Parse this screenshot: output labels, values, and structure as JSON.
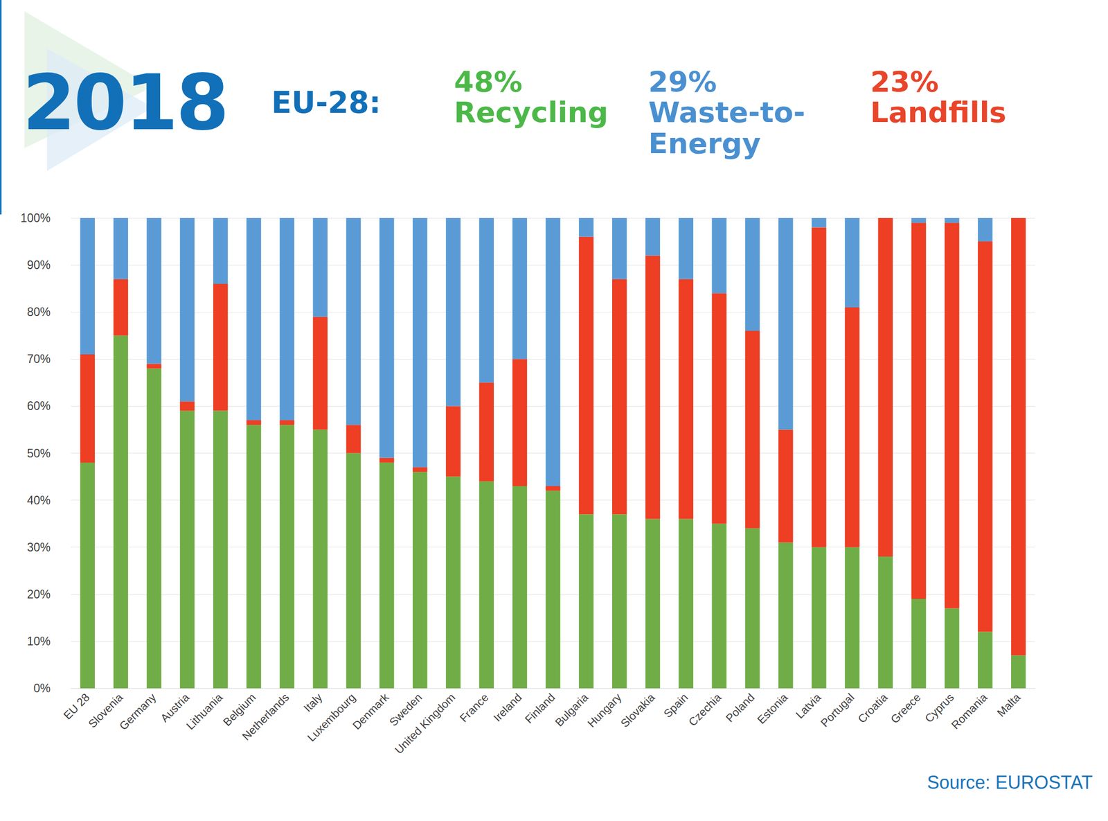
{
  "chart_data": {
    "type": "bar",
    "title": "2018",
    "subtitle": "EU-28:",
    "source": "Source: EUROSTAT",
    "stacked": true,
    "grid": true,
    "categories": [
      "EU 28",
      "Slovenia",
      "Germany",
      "Austria",
      "Lithuania",
      "Belgium",
      "Netherlands",
      "Italy",
      "Luxembourg",
      "Denmark",
      "Sweden",
      "United Kingdom",
      "France",
      "Ireland",
      "Finland",
      "Bulgaria",
      "Hungary",
      "Slovakia",
      "Spain",
      "Czechia",
      "Poland",
      "Estonia",
      "Latvia",
      "Portugal",
      "Croatia",
      "Greece",
      "Cyprus",
      "Romania",
      "Malta"
    ],
    "series": [
      {
        "name": "Recycling",
        "color": "#70ad47",
        "share": 48,
        "share_label": "48%",
        "values": [
          48,
          75,
          68,
          59,
          59,
          56,
          56,
          55,
          50,
          48,
          46,
          45,
          44,
          43,
          42,
          37,
          37,
          36,
          36,
          35,
          34,
          31,
          30,
          30,
          28,
          19,
          17,
          12,
          7
        ]
      },
      {
        "name": "Waste-to-Energy",
        "color": "#5b9bd5",
        "share": 29,
        "share_label": "29%",
        "values": [
          29,
          13,
          31,
          39,
          14,
          43,
          43,
          21,
          44,
          51,
          53,
          40,
          35,
          30,
          57,
          4,
          13,
          8,
          13,
          16,
          24,
          45,
          2,
          19,
          0,
          1,
          1,
          5,
          0
        ]
      },
      {
        "name": "Landfills",
        "color": "#ee3e23",
        "share": 23,
        "share_label": "23%",
        "values": [
          23,
          12,
          1,
          2,
          27,
          1,
          1,
          24,
          6,
          1,
          1,
          15,
          21,
          27,
          1,
          59,
          50,
          56,
          51,
          49,
          42,
          24,
          68,
          51,
          72,
          80,
          82,
          83,
          93
        ]
      }
    ],
    "ylim": [
      0,
      100
    ],
    "yticks": [
      {
        "value": 0,
        "label": "0%"
      },
      {
        "value": 10,
        "label": "10%"
      },
      {
        "value": 20,
        "label": "20%"
      },
      {
        "value": 30,
        "label": "30%"
      },
      {
        "value": 40,
        "label": "40%"
      },
      {
        "value": 50,
        "label": "50%"
      },
      {
        "value": 60,
        "label": "60%"
      },
      {
        "value": 70,
        "label": "70%"
      },
      {
        "value": 80,
        "label": "80%"
      },
      {
        "value": 90,
        "label": "90%"
      },
      {
        "value": 100,
        "label": "100%"
      }
    ]
  }
}
